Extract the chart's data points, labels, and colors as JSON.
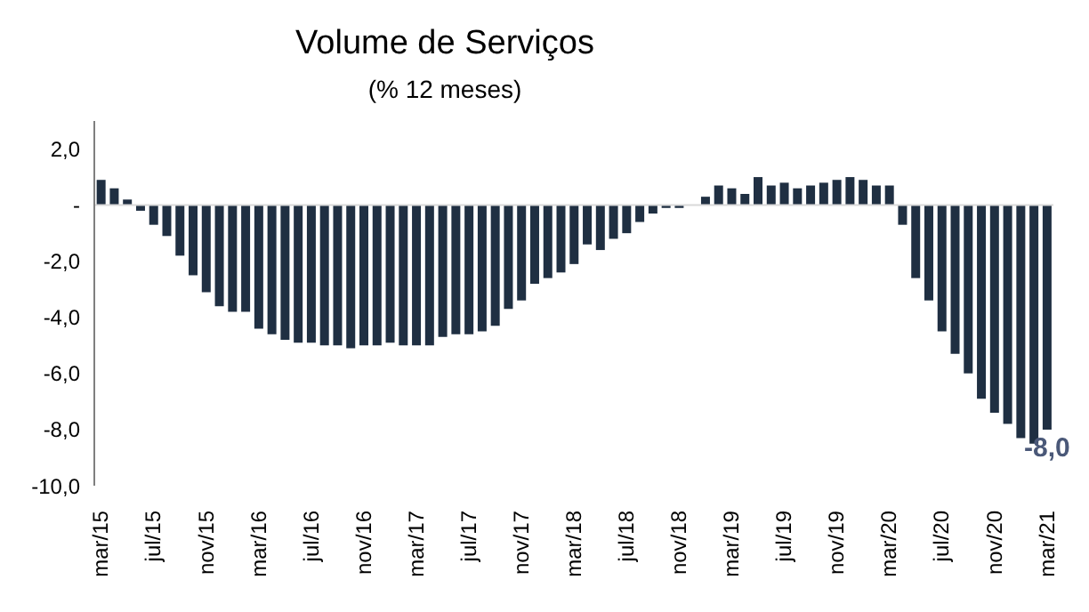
{
  "chart_data": {
    "type": "bar",
    "title": "Volume de Serviços",
    "subtitle": "(% 12 meses)",
    "categories": [
      "mar/15",
      null,
      null,
      null,
      "jul/15",
      null,
      null,
      null,
      "nov/15",
      null,
      null,
      null,
      "mar/16",
      null,
      null,
      null,
      "jul/16",
      null,
      null,
      null,
      "nov/16",
      null,
      null,
      null,
      "mar/17",
      null,
      null,
      null,
      "jul/17",
      null,
      null,
      null,
      "nov/17",
      null,
      null,
      null,
      "mar/18",
      null,
      null,
      null,
      "jul/18",
      null,
      null,
      null,
      "nov/18",
      null,
      null,
      null,
      "mar/19",
      null,
      null,
      null,
      "jul/19",
      null,
      null,
      null,
      "nov/19",
      null,
      null,
      null,
      "mar/20",
      null,
      null,
      null,
      "jul/20",
      null,
      null,
      null,
      "nov/20",
      null,
      null,
      null,
      "mar/21"
    ],
    "values": [
      0.9,
      0.6,
      0.2,
      -0.2,
      -0.7,
      -1.1,
      -1.8,
      -2.5,
      -3.1,
      -3.6,
      -3.8,
      -3.8,
      -4.4,
      -4.6,
      -4.8,
      -4.9,
      -4.9,
      -5.0,
      -5.0,
      -5.1,
      -5.0,
      -5.0,
      -4.9,
      -5.0,
      -5.0,
      -5.0,
      -4.7,
      -4.6,
      -4.6,
      -4.5,
      -4.3,
      -3.7,
      -3.4,
      -2.8,
      -2.6,
      -2.4,
      -2.1,
      -1.4,
      -1.6,
      -1.2,
      -1.0,
      -0.6,
      -0.3,
      -0.1,
      -0.1,
      0.0,
      0.3,
      0.7,
      0.6,
      0.4,
      1.0,
      0.7,
      0.8,
      0.6,
      0.7,
      0.8,
      0.9,
      1.0,
      0.9,
      0.7,
      0.7,
      -0.7,
      -2.6,
      -3.4,
      -4.5,
      -5.3,
      -6.0,
      -6.9,
      -7.4,
      -7.8,
      -8.3,
      -8.5,
      -8.0
    ],
    "value_labels": [
      null,
      null,
      null,
      null,
      null,
      null,
      null,
      null,
      null,
      null,
      null,
      null,
      null,
      null,
      null,
      null,
      null,
      null,
      null,
      null,
      null,
      null,
      null,
      null,
      null,
      null,
      null,
      null,
      null,
      null,
      null,
      null,
      null,
      null,
      null,
      null,
      null,
      null,
      null,
      null,
      null,
      null,
      null,
      null,
      null,
      null,
      null,
      null,
      null,
      null,
      null,
      null,
      null,
      null,
      null,
      null,
      null,
      null,
      null,
      null,
      null,
      null,
      null,
      null,
      null,
      null,
      null,
      null,
      null,
      null,
      null,
      null,
      "-8,0"
    ],
    "color": "#1f2f42",
    "ylim": [
      -10,
      3
    ],
    "yticks": [
      {
        "value": -10,
        "label": "-10,0"
      },
      {
        "value": -8,
        "label": "-8,0"
      },
      {
        "value": -6,
        "label": "-6,0"
      },
      {
        "value": -4,
        "label": "-4,0"
      },
      {
        "value": -2,
        "label": "-2,0"
      },
      {
        "value": 0,
        "label": "-"
      },
      {
        "value": 2,
        "label": "2,0"
      }
    ],
    "legend": false
  }
}
